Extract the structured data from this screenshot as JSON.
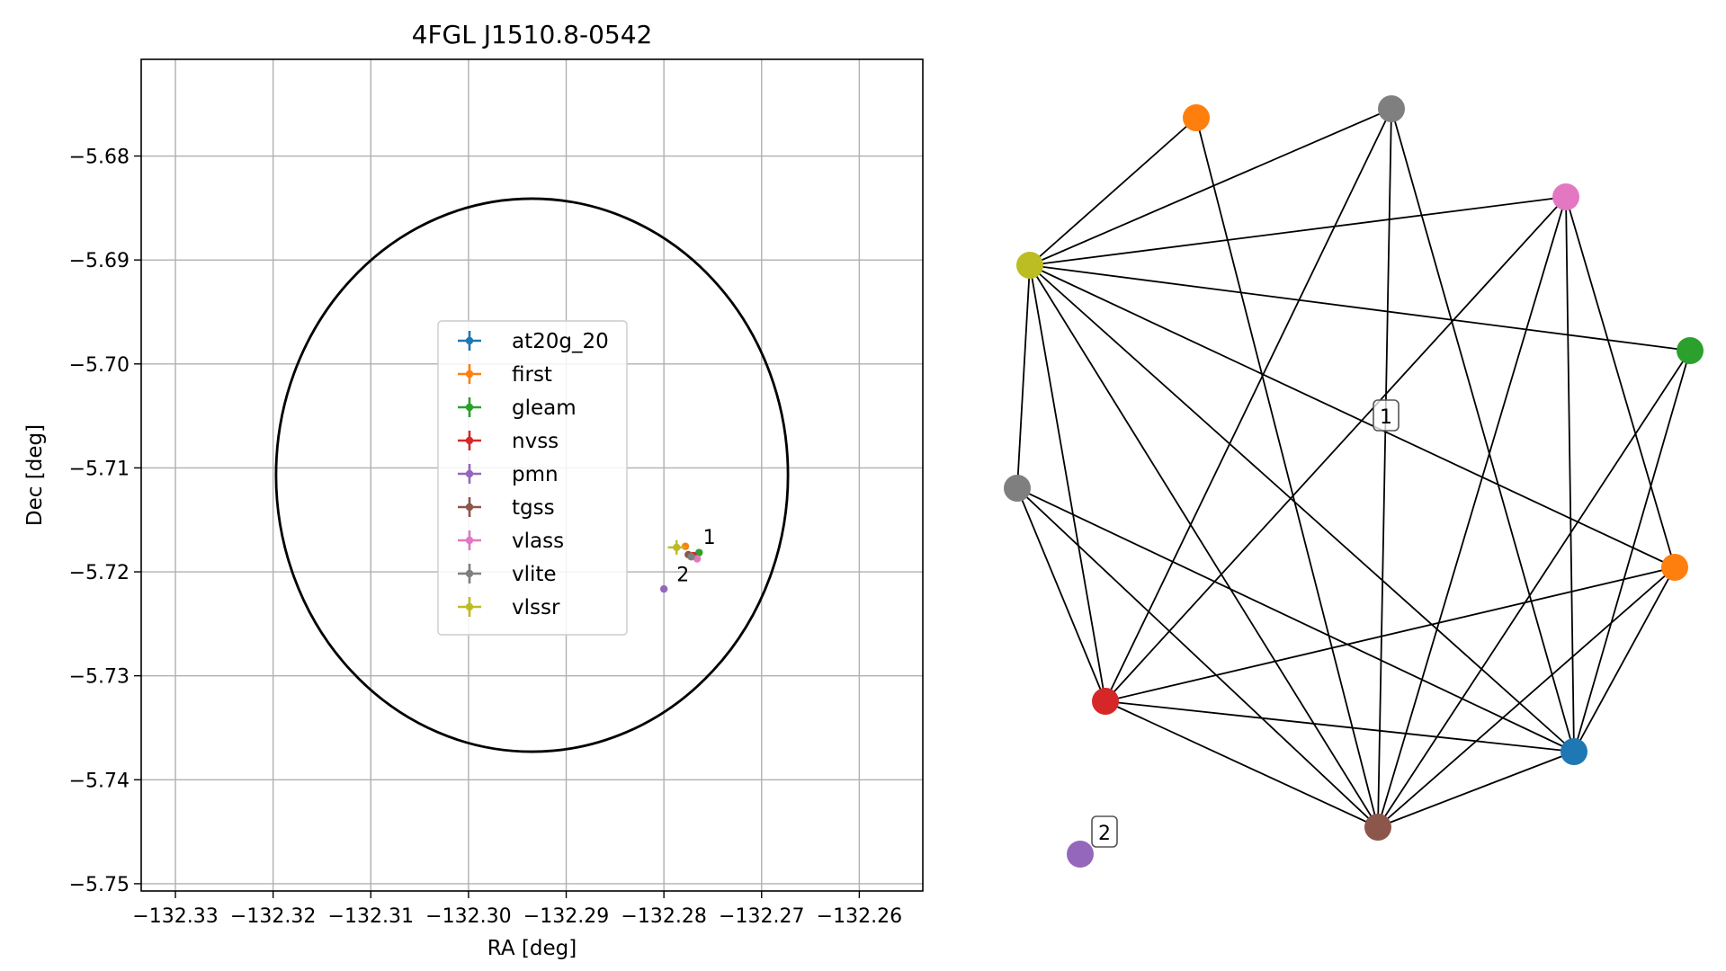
{
  "chart_data": [
    {
      "type": "scatter",
      "title": "4FGL J1510.8-0542",
      "xlabel": "RA [deg]",
      "ylabel": "Dec [deg]",
      "xlim": [
        -132.3335,
        -132.2535
      ],
      "ylim": [
        -5.7507,
        -5.6707
      ],
      "grid": true,
      "x_ticks": [
        -132.33,
        -132.32,
        -132.31,
        -132.3,
        -132.29,
        -132.28,
        -132.27,
        -132.26
      ],
      "x_tick_labels": [
        "−132.33",
        "−132.32",
        "−132.31",
        "−132.30",
        "−132.29",
        "−132.28",
        "−132.27",
        "−132.26"
      ],
      "y_ticks": [
        -5.68,
        -5.69,
        -5.7,
        -5.71,
        -5.72,
        -5.73,
        -5.74,
        -5.75
      ],
      "y_tick_labels": [
        "−5.68",
        "−5.69",
        "−5.70",
        "−5.71",
        "−5.72",
        "−5.73",
        "−5.74",
        "−5.75"
      ],
      "ellipse": {
        "center": [
          -132.2935,
          -5.7107
        ],
        "rx": 0.0262,
        "ry": 0.0266,
        "color": "#000000"
      },
      "legend": {
        "position": "center",
        "entries": [
          {
            "label": "at20g_20",
            "color": "#1f77b4"
          },
          {
            "label": "first",
            "color": "#ff7f0e"
          },
          {
            "label": "gleam",
            "color": "#2ca02c"
          },
          {
            "label": "nvss",
            "color": "#d62728"
          },
          {
            "label": "pmn",
            "color": "#9467bd"
          },
          {
            "label": "tgss",
            "color": "#8c564b"
          },
          {
            "label": "vlass",
            "color": "#e377c2"
          },
          {
            "label": "vlite",
            "color": "#7f7f7f"
          },
          {
            "label": "vlssr",
            "color": "#bcbd22"
          }
        ]
      },
      "series": [
        {
          "name": "at20g_20",
          "color": "#1f77b4",
          "points": [
            {
              "x": -132.2767,
              "y": -5.71845
            }
          ]
        },
        {
          "name": "first",
          "color": "#ff7f0e",
          "points": [
            {
              "x": -132.2778,
              "y": -5.71755
            }
          ]
        },
        {
          "name": "gleam",
          "color": "#2ca02c",
          "points": [
            {
              "x": -132.2764,
              "y": -5.71815
            }
          ]
        },
        {
          "name": "nvss",
          "color": "#d62728",
          "points": [
            {
              "x": -132.277,
              "y": -5.71845
            }
          ]
        },
        {
          "name": "pmn",
          "color": "#9467bd",
          "points": [
            {
              "x": -132.28,
              "y": -5.72165
            }
          ]
        },
        {
          "name": "tgss",
          "color": "#8c564b",
          "points": [
            {
              "x": -132.2775,
              "y": -5.71835
            }
          ]
        },
        {
          "name": "vlass",
          "color": "#e377c2",
          "points": [
            {
              "x": -132.2766,
              "y": -5.71875
            }
          ]
        },
        {
          "name": "vlite",
          "color": "#7f7f7f",
          "points": [
            {
              "x": -132.2772,
              "y": -5.71855
            }
          ]
        },
        {
          "name": "vlssr",
          "color": "#bcbd22",
          "points": [
            {
              "x": -132.2787,
              "y": -5.71765,
              "xerr": 0.0009,
              "yerr": 0.0007
            }
          ]
        }
      ],
      "annotations": [
        {
          "text": "1",
          "x": -132.276,
          "y": -5.7173
        },
        {
          "text": "2",
          "x": -132.2787,
          "y": -5.7209
        }
      ]
    },
    {
      "type": "network",
      "nodes": [
        {
          "id": "vlssr",
          "color": "#bcbd22"
        },
        {
          "id": "first",
          "color": "#ff7f0e"
        },
        {
          "id": "vlite",
          "color": "#7f7f7f"
        },
        {
          "id": "vlass",
          "color": "#e377c2"
        },
        {
          "id": "gleam",
          "color": "#2ca02c"
        },
        {
          "id": "first-2",
          "color": "#ff7f0e"
        },
        {
          "id": "at20g_20",
          "color": "#1f77b4"
        },
        {
          "id": "tgss",
          "color": "#8c564b"
        },
        {
          "id": "nvss",
          "color": "#d62728"
        },
        {
          "id": "vlite-2",
          "color": "#7f7f7f"
        },
        {
          "id": "pmn",
          "color": "#9467bd"
        }
      ],
      "edges": [
        [
          "vlssr",
          "first"
        ],
        [
          "vlssr",
          "vlite"
        ],
        [
          "vlssr",
          "vlass"
        ],
        [
          "vlssr",
          "gleam"
        ],
        [
          "vlssr",
          "first-2"
        ],
        [
          "vlssr",
          "at20g_20"
        ],
        [
          "vlssr",
          "tgss"
        ],
        [
          "vlssr",
          "nvss"
        ],
        [
          "vlssr",
          "vlite-2"
        ],
        [
          "first",
          "tgss"
        ],
        [
          "vlite",
          "nvss"
        ],
        [
          "vlite",
          "at20g_20"
        ],
        [
          "vlite",
          "tgss"
        ],
        [
          "vlass",
          "nvss"
        ],
        [
          "vlass",
          "at20g_20"
        ],
        [
          "vlass",
          "tgss"
        ],
        [
          "vlass",
          "first-2"
        ],
        [
          "gleam",
          "tgss"
        ],
        [
          "gleam",
          "at20g_20"
        ],
        [
          "first-2",
          "nvss"
        ],
        [
          "first-2",
          "tgss"
        ],
        [
          "first-2",
          "at20g_20"
        ],
        [
          "at20g_20",
          "nvss"
        ],
        [
          "at20g_20",
          "tgss"
        ],
        [
          "tgss",
          "nvss"
        ],
        [
          "vlite-2",
          "nvss"
        ],
        [
          "vlite-2",
          "tgss"
        ],
        [
          "vlite-2",
          "at20g_20"
        ]
      ],
      "component_labels": [
        {
          "text": "1",
          "component": 1
        },
        {
          "text": "2",
          "component": 2
        }
      ]
    }
  ]
}
